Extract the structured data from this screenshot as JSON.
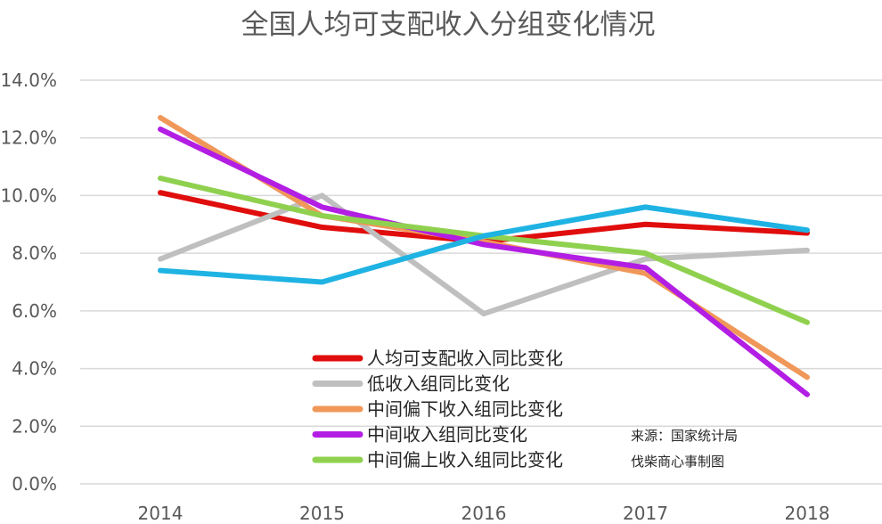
{
  "chart_data": {
    "type": "line",
    "title": "全国人均可支配收入分组变化情况",
    "x": [
      "2014",
      "2015",
      "2016",
      "2017",
      "2018"
    ],
    "yticks": [
      "0.0%",
      "2.0%",
      "4.0%",
      "6.0%",
      "8.0%",
      "10.0%",
      "12.0%",
      "14.0%"
    ],
    "ylim": [
      0,
      14
    ],
    "grid": true,
    "legend_position": "center-bottom",
    "series": [
      {
        "name": "人均可支配收入同比变化",
        "color": "#e00d0d",
        "values": [
          10.1,
          8.9,
          8.4,
          9.0,
          8.7
        ]
      },
      {
        "name": "低收入组同比变化",
        "color": "#bfbfbf",
        "values": [
          7.8,
          10.0,
          5.9,
          7.8,
          8.1
        ]
      },
      {
        "name": "中间偏下收入组同比变化",
        "color": "#f0975a",
        "values": [
          12.7,
          9.3,
          8.4,
          7.3,
          3.7
        ]
      },
      {
        "name": "中间收入组同比变化",
        "color": "#b21ee3",
        "values": [
          12.3,
          9.6,
          8.3,
          7.5,
          3.1
        ]
      },
      {
        "name": "中间偏上收入组同比变化",
        "color": "#8fd14f",
        "values": [
          10.6,
          9.3,
          8.6,
          8.0,
          5.6
        ]
      },
      {
        "name": "",
        "color": "#1fb3e3",
        "values": [
          7.4,
          7.0,
          8.6,
          9.6,
          8.8
        ]
      }
    ],
    "annotations": [
      "来源：国家统计局",
      "伐柴商心事制图"
    ]
  }
}
